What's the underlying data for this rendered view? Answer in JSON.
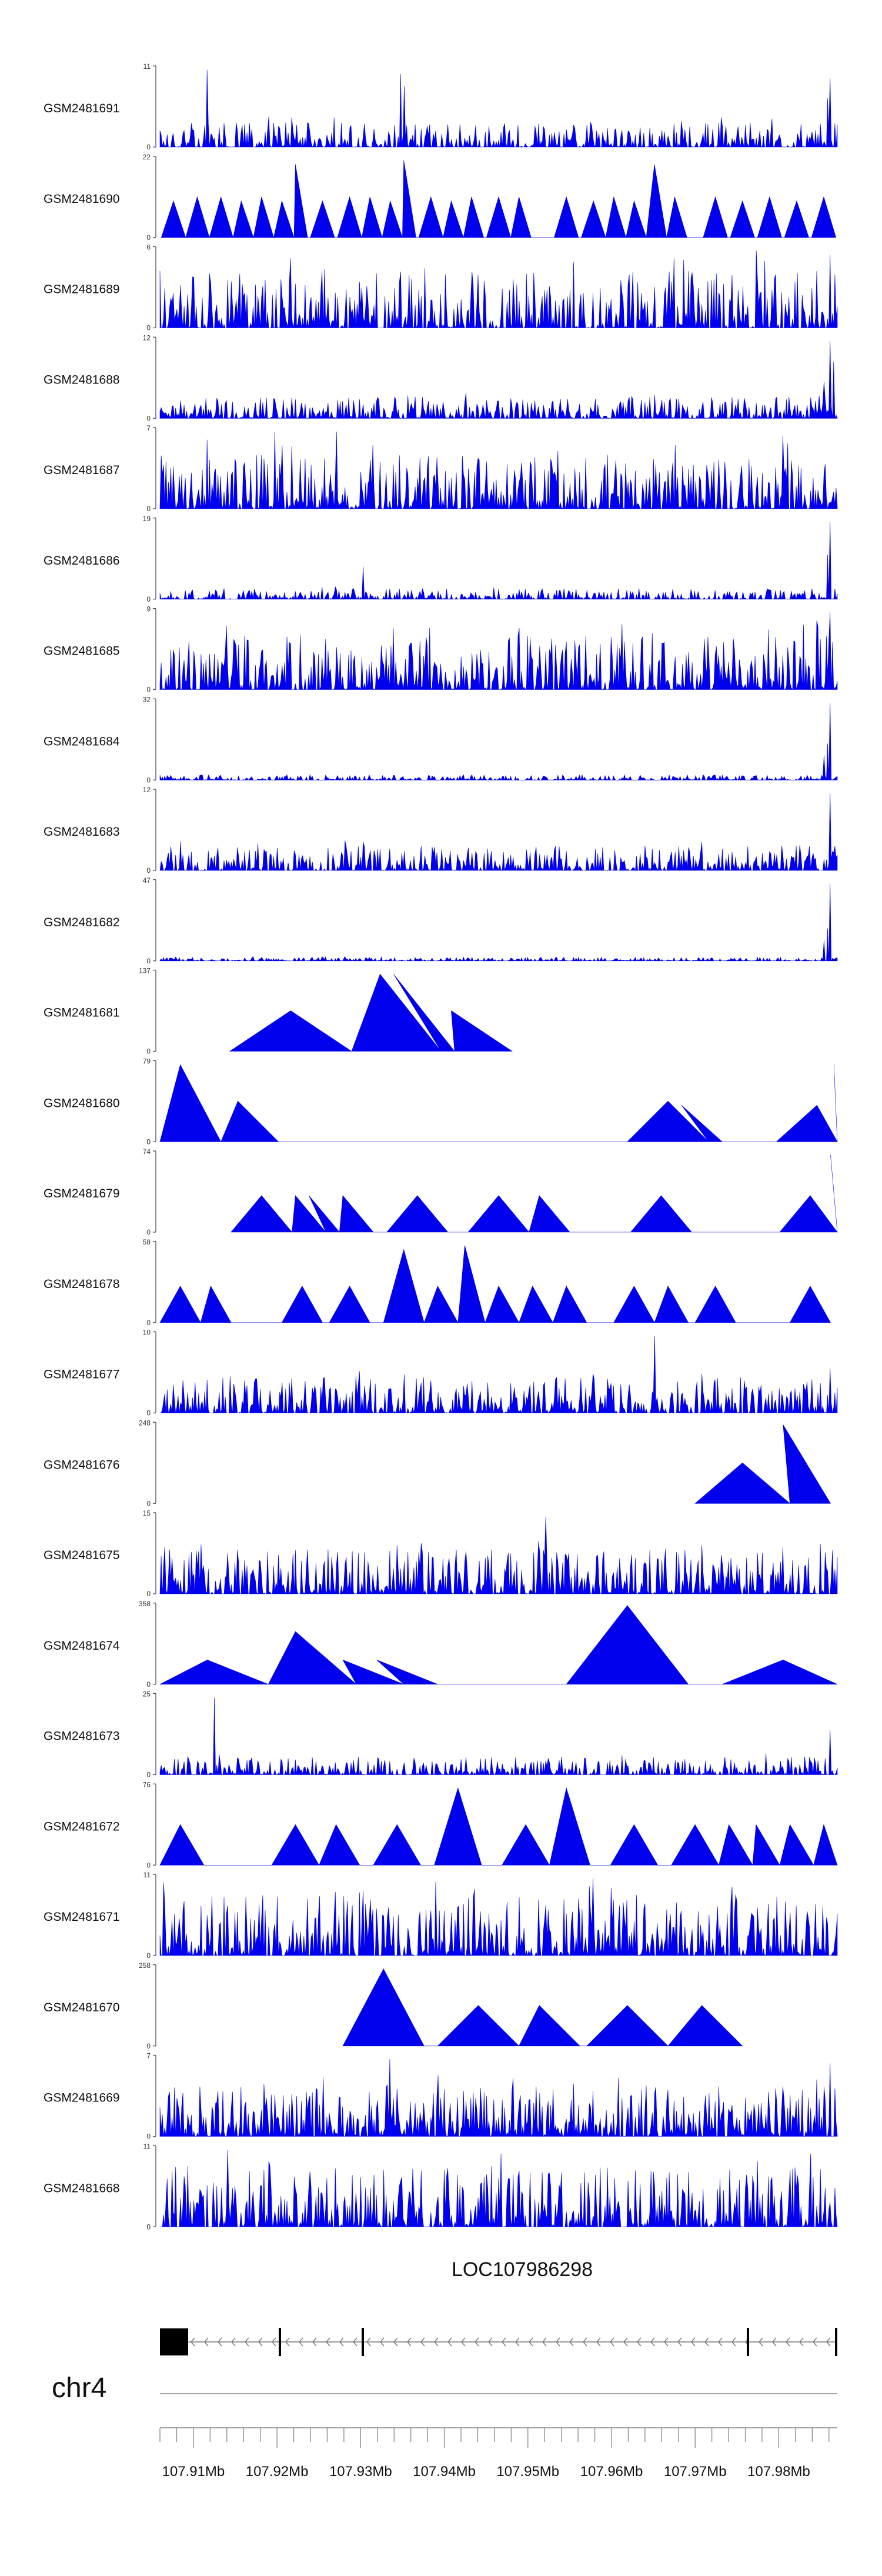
{
  "chart_data": {
    "type": "area",
    "title": "",
    "fill_color": "#0000ee",
    "chromosome": "chr4",
    "gene": {
      "name": "LOC107986298",
      "strand": "-",
      "exon_color": "#000000",
      "line_color": "#777777"
    },
    "x_range_mb": [
      107.906,
      107.987
    ],
    "x_tick_labels": [
      "107.91Mb",
      "107.92Mb",
      "107.93Mb",
      "107.94Mb",
      "107.95Mb",
      "107.96Mb",
      "107.97Mb",
      "107.98Mb"
    ],
    "tracks": [
      {
        "sample": "GSM2481691",
        "ymax": "11",
        "ymin": "0",
        "style": "noise",
        "base": 0.14,
        "spikes": [
          [
            0.07,
            0.95
          ],
          [
            0.355,
            0.9
          ],
          [
            0.36,
            0.75
          ],
          [
            0.99,
            0.85
          ],
          [
            0.985,
            0.6
          ]
        ]
      },
      {
        "sample": "GSM2481690",
        "ymax": "22",
        "ymin": "0",
        "style": "peaks",
        "peaks": [
          [
            0.02,
            0.45
          ],
          [
            0.055,
            0.5
          ],
          [
            0.09,
            0.5
          ],
          [
            0.12,
            0.45
          ],
          [
            0.15,
            0.5
          ],
          [
            0.18,
            0.45
          ],
          [
            0.2,
            0.9
          ],
          [
            0.24,
            0.45
          ],
          [
            0.28,
            0.5
          ],
          [
            0.31,
            0.5
          ],
          [
            0.34,
            0.45
          ],
          [
            0.36,
            0.95
          ],
          [
            0.4,
            0.5
          ],
          [
            0.43,
            0.45
          ],
          [
            0.46,
            0.5
          ],
          [
            0.5,
            0.5
          ],
          [
            0.53,
            0.5
          ],
          [
            0.6,
            0.5
          ],
          [
            0.64,
            0.45
          ],
          [
            0.67,
            0.5
          ],
          [
            0.7,
            0.45
          ],
          [
            0.73,
            0.9
          ],
          [
            0.76,
            0.5
          ],
          [
            0.82,
            0.5
          ],
          [
            0.86,
            0.45
          ],
          [
            0.9,
            0.5
          ],
          [
            0.94,
            0.45
          ],
          [
            0.98,
            0.5
          ]
        ],
        "peak_halfwidth": 0.018
      },
      {
        "sample": "GSM2481689",
        "ymax": "6",
        "ymin": "0",
        "style": "noise",
        "base": 0.32,
        "spikes": [
          [
            0.88,
            0.95
          ],
          [
            0.97,
            0.7
          ],
          [
            0.99,
            0.9
          ]
        ]
      },
      {
        "sample": "GSM2481688",
        "ymax": "12",
        "ymin": "0",
        "style": "noise",
        "base": 0.12,
        "spikes": [
          [
            0.99,
            0.95
          ],
          [
            0.995,
            0.7
          ],
          [
            0.98,
            0.45
          ]
        ]
      },
      {
        "sample": "GSM2481687",
        "ymax": "7",
        "ymin": "0",
        "style": "noise",
        "base": 0.3,
        "spikes": [
          [
            0.17,
            0.95
          ],
          [
            0.26,
            0.95
          ],
          [
            0.92,
            0.9
          ],
          [
            0.07,
            0.85
          ]
        ]
      },
      {
        "sample": "GSM2481686",
        "ymax": "19",
        "ymin": "0",
        "style": "noise",
        "base": 0.06,
        "spikes": [
          [
            0.3,
            0.4
          ],
          [
            0.99,
            0.95
          ],
          [
            0.985,
            0.55
          ]
        ]
      },
      {
        "sample": "GSM2481685",
        "ymax": "9",
        "ymin": "0",
        "style": "noise",
        "base": 0.3,
        "spikes": [
          [
            0.95,
            0.8
          ],
          [
            0.97,
            0.85
          ],
          [
            0.99,
            0.95
          ]
        ]
      },
      {
        "sample": "GSM2481684",
        "ymax": "32",
        "ymin": "0",
        "style": "noise",
        "base": 0.03,
        "spikes": [
          [
            0.99,
            0.95
          ],
          [
            0.985,
            0.45
          ],
          [
            0.98,
            0.3
          ]
        ]
      },
      {
        "sample": "GSM2481683",
        "ymax": "12",
        "ymin": "0",
        "style": "noise",
        "base": 0.14,
        "spikes": [
          [
            0.99,
            0.95
          ],
          [
            0.3,
            0.35
          ],
          [
            0.8,
            0.35
          ]
        ]
      },
      {
        "sample": "GSM2481682",
        "ymax": "47",
        "ymin": "0",
        "style": "noise",
        "base": 0.02,
        "spikes": [
          [
            0.99,
            0.95
          ],
          [
            0.985,
            0.4
          ],
          [
            0.98,
            0.25
          ]
        ]
      },
      {
        "sample": "GSM2481681",
        "ymax": "137",
        "ymin": "0",
        "style": "peaks",
        "peaks": [
          [
            0.193,
            0.5
          ],
          [
            0.325,
            0.95
          ],
          [
            0.345,
            0.95
          ],
          [
            0.43,
            0.5
          ]
        ],
        "peak_halfwidth": 0.09
      },
      {
        "sample": "GSM2481680",
        "ymax": "79",
        "ymin": "0",
        "style": "peaks",
        "peaks": [
          [
            0.03,
            0.95
          ],
          [
            0.115,
            0.5
          ],
          [
            0.75,
            0.5
          ],
          [
            0.77,
            0.45
          ],
          [
            0.995,
            0.95
          ],
          [
            0.97,
            0.45
          ]
        ],
        "peak_halfwidth": 0.06
      },
      {
        "sample": "GSM2481679",
        "ymax": "74",
        "ymin": "0",
        "style": "peaks",
        "peaks": [
          [
            0.15,
            0.45
          ],
          [
            0.2,
            0.45
          ],
          [
            0.22,
            0.45
          ],
          [
            0.27,
            0.45
          ],
          [
            0.38,
            0.45
          ],
          [
            0.5,
            0.45
          ],
          [
            0.56,
            0.45
          ],
          [
            0.74,
            0.45
          ],
          [
            0.96,
            0.45
          ],
          [
            0.99,
            0.95
          ]
        ],
        "peak_halfwidth": 0.045
      },
      {
        "sample": "GSM2481678",
        "ymax": "58",
        "ymin": "0",
        "style": "peaks",
        "peaks": [
          [
            0.03,
            0.45
          ],
          [
            0.075,
            0.45
          ],
          [
            0.21,
            0.45
          ],
          [
            0.28,
            0.45
          ],
          [
            0.36,
            0.9
          ],
          [
            0.41,
            0.45
          ],
          [
            0.45,
            0.95
          ],
          [
            0.5,
            0.45
          ],
          [
            0.55,
            0.45
          ],
          [
            0.6,
            0.45
          ],
          [
            0.7,
            0.45
          ],
          [
            0.75,
            0.45
          ],
          [
            0.82,
            0.45
          ],
          [
            0.96,
            0.45
          ]
        ],
        "peak_halfwidth": 0.03
      },
      {
        "sample": "GSM2481677",
        "ymax": "10",
        "ymin": "0",
        "style": "noise",
        "base": 0.2,
        "spikes": [
          [
            0.73,
            0.95
          ],
          [
            0.99,
            0.55
          ],
          [
            0.4,
            0.4
          ]
        ]
      },
      {
        "sample": "GSM2481676",
        "ymax": "248",
        "ymin": "0",
        "style": "peaks",
        "peaks": [
          [
            0.86,
            0.5
          ],
          [
            0.92,
            0.97
          ]
        ],
        "peak_halfwidth": 0.07
      },
      {
        "sample": "GSM2481675",
        "ymax": "15",
        "ymin": "0",
        "style": "noise",
        "base": 0.25,
        "spikes": [
          [
            0.57,
            0.95
          ],
          [
            0.35,
            0.6
          ],
          [
            0.8,
            0.6
          ]
        ]
      },
      {
        "sample": "GSM2481674",
        "ymax": "358",
        "ymin": "0",
        "style": "peaks",
        "peaks": [
          [
            0.07,
            0.3
          ],
          [
            0.2,
            0.65
          ],
          [
            0.27,
            0.3
          ],
          [
            0.32,
            0.3
          ],
          [
            0.69,
            0.97
          ],
          [
            0.92,
            0.3
          ]
        ],
        "peak_halfwidth": 0.09
      },
      {
        "sample": "GSM2481673",
        "ymax": "25",
        "ymin": "0",
        "style": "noise",
        "base": 0.1,
        "spikes": [
          [
            0.08,
            0.95
          ],
          [
            0.99,
            0.55
          ]
        ]
      },
      {
        "sample": "GSM2481672",
        "ymax": "76",
        "ymin": "0",
        "style": "peaks",
        "peaks": [
          [
            0.03,
            0.5
          ],
          [
            0.2,
            0.5
          ],
          [
            0.26,
            0.5
          ],
          [
            0.35,
            0.5
          ],
          [
            0.44,
            0.95
          ],
          [
            0.54,
            0.5
          ],
          [
            0.6,
            0.95
          ],
          [
            0.7,
            0.5
          ],
          [
            0.79,
            0.5
          ],
          [
            0.84,
            0.5
          ],
          [
            0.88,
            0.5
          ],
          [
            0.93,
            0.5
          ],
          [
            0.98,
            0.5
          ]
        ],
        "peak_halfwidth": 0.035
      },
      {
        "sample": "GSM2481671",
        "ymax": "11",
        "ymin": "0",
        "style": "noise",
        "base": 0.34,
        "spikes": [
          [
            0.64,
            0.95
          ],
          [
            0.3,
            0.8
          ],
          [
            0.85,
            0.75
          ]
        ]
      },
      {
        "sample": "GSM2481670",
        "ymax": "258",
        "ymin": "0",
        "style": "peaks",
        "peaks": [
          [
            0.33,
            0.95
          ],
          [
            0.47,
            0.5
          ],
          [
            0.56,
            0.5
          ],
          [
            0.69,
            0.5
          ],
          [
            0.8,
            0.5
          ]
        ],
        "peak_halfwidth": 0.06
      },
      {
        "sample": "GSM2481669",
        "ymax": "7",
        "ymin": "0",
        "style": "noise",
        "base": 0.28,
        "spikes": [
          [
            0.34,
            0.95
          ],
          [
            0.99,
            0.9
          ],
          [
            0.97,
            0.7
          ]
        ]
      },
      {
        "sample": "GSM2481668",
        "ymax": "11",
        "ymin": "0",
        "style": "noise",
        "base": 0.34,
        "spikes": [
          [
            0.1,
            0.95
          ],
          [
            0.96,
            0.9
          ],
          [
            0.93,
            0.7
          ]
        ]
      }
    ]
  }
}
